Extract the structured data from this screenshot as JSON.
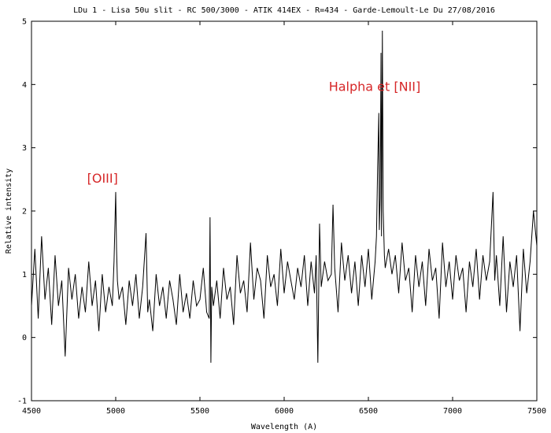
{
  "chart_data": {
    "type": "line",
    "title": "LDu 1 - Lisa 50u slit - RC 500/3000 - ATIK 414EX - R=434 - Garde-Lemoult-Le Du 27/08/2016",
    "xlabel": "Wavelength (A)",
    "ylabel": "Relative intensity",
    "xlim": [
      4500,
      7500
    ],
    "ylim": [
      -1,
      5
    ],
    "xticks": [
      4500,
      5000,
      5500,
      6000,
      6500,
      7000,
      7500
    ],
    "yticks": [
      -1,
      0,
      1,
      2,
      3,
      4,
      5
    ],
    "grid": false,
    "line_color": "#000000",
    "annotation_color": "#d62728",
    "annotations": [
      {
        "text": "[OIII]",
        "x": 4830,
        "y": 2.45
      },
      {
        "text": "Halpha et [NII]",
        "x": 6265,
        "y": 3.9
      }
    ],
    "series": [
      {
        "x": [
          4500,
          4520,
          4540,
          4560,
          4580,
          4600,
          4620,
          4640,
          4660,
          4680,
          4700,
          4720,
          4740,
          4760,
          4780,
          4800,
          4820,
          4840,
          4860,
          4880,
          4900,
          4920,
          4940,
          4960,
          4980,
          4990,
          5000,
          5005,
          5010,
          5020,
          5040,
          5060,
          5080,
          5100,
          5120,
          5140,
          5160,
          5180,
          5190,
          5200,
          5220,
          5240,
          5260,
          5280,
          5300,
          5320,
          5340,
          5360,
          5380,
          5400,
          5420,
          5440,
          5460,
          5480,
          5500,
          5520,
          5540,
          5555,
          5560,
          5565,
          5570,
          5580,
          5600,
          5620,
          5640,
          5660,
          5680,
          5700,
          5720,
          5740,
          5760,
          5780,
          5800,
          5820,
          5840,
          5860,
          5880,
          5900,
          5920,
          5940,
          5960,
          5980,
          6000,
          6020,
          6040,
          6060,
          6080,
          6100,
          6120,
          6140,
          6160,
          6180,
          6190,
          6200,
          6210,
          6220,
          6240,
          6260,
          6280,
          6290,
          6300,
          6320,
          6340,
          6360,
          6380,
          6400,
          6420,
          6440,
          6460,
          6480,
          6500,
          6520,
          6540,
          6548,
          6555,
          6562,
          6565,
          6570,
          6575,
          6578,
          6583,
          6588,
          6595,
          6600,
          6620,
          6640,
          6660,
          6680,
          6700,
          6720,
          6740,
          6760,
          6780,
          6800,
          6820,
          6840,
          6860,
          6880,
          6900,
          6920,
          6940,
          6960,
          6980,
          7000,
          7020,
          7040,
          7060,
          7080,
          7100,
          7120,
          7140,
          7160,
          7180,
          7200,
          7220,
          7240,
          7250,
          7260,
          7280,
          7300,
          7320,
          7340,
          7360,
          7380,
          7400,
          7420,
          7440,
          7460,
          7480,
          7500
        ],
        "y": [
          0.5,
          1.4,
          0.3,
          1.6,
          0.6,
          1.1,
          0.2,
          1.3,
          0.5,
          0.9,
          -0.3,
          1.1,
          0.6,
          1.0,
          0.3,
          0.8,
          0.4,
          1.2,
          0.5,
          0.9,
          0.1,
          1.0,
          0.4,
          0.8,
          0.5,
          1.2,
          2.3,
          1.4,
          0.9,
          0.6,
          0.8,
          0.2,
          0.9,
          0.5,
          1.0,
          0.3,
          0.8,
          1.65,
          0.4,
          0.6,
          0.1,
          1.0,
          0.5,
          0.8,
          0.3,
          0.9,
          0.6,
          0.2,
          1.0,
          0.4,
          0.7,
          0.3,
          0.9,
          0.5,
          0.6,
          1.1,
          0.4,
          0.3,
          1.9,
          -0.4,
          0.8,
          0.5,
          0.9,
          0.3,
          1.1,
          0.6,
          0.8,
          0.2,
          1.3,
          0.7,
          0.9,
          0.4,
          1.5,
          0.6,
          1.1,
          0.9,
          0.3,
          1.3,
          0.8,
          1.0,
          0.5,
          1.4,
          0.7,
          1.2,
          0.9,
          0.6,
          1.1,
          0.8,
          1.3,
          0.5,
          1.2,
          0.7,
          1.3,
          -0.4,
          1.8,
          0.8,
          1.2,
          0.9,
          1.0,
          2.1,
          1.1,
          0.4,
          1.5,
          0.9,
          1.3,
          0.7,
          1.2,
          0.5,
          1.3,
          0.8,
          1.4,
          0.6,
          1.2,
          1.6,
          2.7,
          3.55,
          1.7,
          2.2,
          4.5,
          1.6,
          4.85,
          2.0,
          1.3,
          1.1,
          1.4,
          1.0,
          1.3,
          0.7,
          1.5,
          0.9,
          1.1,
          0.4,
          1.3,
          0.8,
          1.2,
          0.5,
          1.4,
          0.9,
          1.1,
          0.3,
          1.5,
          0.8,
          1.2,
          0.6,
          1.3,
          0.9,
          1.1,
          0.4,
          1.2,
          0.8,
          1.4,
          0.6,
          1.3,
          0.9,
          1.2,
          2.3,
          0.9,
          1.3,
          0.5,
          1.6,
          0.4,
          1.2,
          0.8,
          1.3,
          0.1,
          1.4,
          0.7,
          1.2,
          2.0,
          1.45
        ]
      }
    ]
  }
}
